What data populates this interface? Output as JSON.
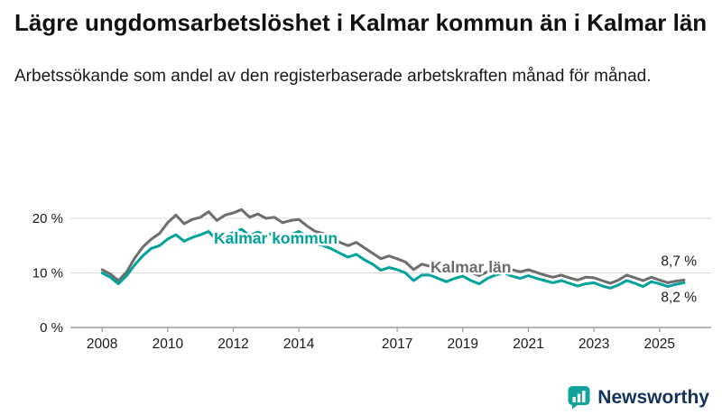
{
  "page": {
    "title": "Lägre ungdomsarbetslöshet i Kalmar kommun än i Kalmar län",
    "subtitle": "Arbetssökande som andel av den registerbaserade arbetskraften månad för månad.",
    "brand": {
      "name": "Newsworthy",
      "icon": "bar-chart-bubble-icon",
      "icon_color": "#10a39b",
      "text_color": "#14325c"
    }
  },
  "chart_data": {
    "type": "line",
    "title": "Lägre ungdomsarbetslöshet i Kalmar kommun än i Kalmar län",
    "subtitle": "Arbetssökande som andel av den registerbaserade arbetskraften månad för månad.",
    "unit": "%",
    "grid": true,
    "x_range": [
      2007.5,
      2026.3
    ],
    "y_range": [
      0,
      23.6
    ],
    "x_start": 2008.0,
    "x_step": 0.25,
    "x_ticks": [
      2008,
      2010,
      2012,
      2014,
      2017,
      2019,
      2021,
      2023,
      2025
    ],
    "y_ticks": [
      {
        "value": 20,
        "label": "20 %"
      },
      {
        "value": 10,
        "label": "10 %"
      },
      {
        "value": 0,
        "label": "0 %"
      }
    ],
    "colors": {
      "grid": "#d9d9d9",
      "axis": "#9a9a9a",
      "text": "#1a1a1a"
    },
    "series": [
      {
        "name": "Kalmar kommun",
        "color": "#00a29a",
        "end_value": 8.2,
        "end_label": "8,2 %",
        "values": [
          10.0,
          9.2,
          8.0,
          9.5,
          11.5,
          13.2,
          14.5,
          15.0,
          16.2,
          17.0,
          15.8,
          16.5,
          17.0,
          17.6,
          15.9,
          16.8,
          17.4,
          18.0,
          16.8,
          17.5,
          16.8,
          17.4,
          16.3,
          17.0,
          17.6,
          16.6,
          15.4,
          15.0,
          14.4,
          13.6,
          12.9,
          13.4,
          12.4,
          11.6,
          10.5,
          11.0,
          10.6,
          10.0,
          8.6,
          9.6,
          9.6,
          9.0,
          8.4,
          9.0,
          9.4,
          8.6,
          8.0,
          9.0,
          9.6,
          10.0,
          9.4,
          9.0,
          9.5,
          9.0,
          8.6,
          8.2,
          8.6,
          8.1,
          7.6,
          8.0,
          8.2,
          7.6,
          7.2,
          7.8,
          8.6,
          8.1,
          7.5,
          8.4,
          8.0,
          7.5,
          7.9,
          8.2
        ]
      },
      {
        "name": "Kalmar län",
        "color": "#6d6d6d",
        "end_value": 8.7,
        "end_label": "8,7 %",
        "values": [
          10.6,
          9.8,
          8.6,
          10.2,
          12.8,
          14.8,
          16.2,
          17.2,
          19.2,
          20.6,
          19.0,
          19.8,
          20.2,
          21.2,
          19.6,
          20.6,
          21.0,
          21.6,
          20.2,
          20.8,
          20.0,
          20.2,
          19.2,
          19.6,
          19.8,
          18.6,
          17.6,
          17.2,
          16.6,
          15.6,
          15.0,
          15.6,
          14.6,
          13.6,
          12.6,
          13.1,
          12.6,
          12.0,
          10.6,
          11.6,
          11.2,
          10.6,
          10.0,
          10.6,
          10.6,
          10.0,
          9.5,
          10.2,
          10.8,
          11.2,
          10.6,
          10.2,
          10.6,
          10.1,
          9.6,
          9.2,
          9.6,
          9.1,
          8.7,
          9.2,
          9.1,
          8.6,
          8.1,
          8.7,
          9.6,
          9.1,
          8.6,
          9.2,
          8.7,
          8.2,
          8.5,
          8.7
        ]
      }
    ],
    "legend_position": "inline-labels"
  }
}
